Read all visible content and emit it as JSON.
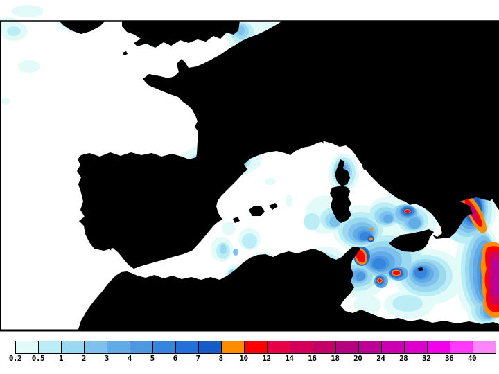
{
  "figure": {
    "kind": "precipitation-forecast-map",
    "region": "Western Europe and Mediterranean",
    "sea_color": "#FFFFFF",
    "land_color": "#ADADAD",
    "coastline_color": "#000000",
    "frame_color": "#000000",
    "background_color": "#FFFFFF"
  },
  "colorbar": {
    "orientation": "horizontal",
    "labels": [
      "0.2",
      "0.5",
      "1",
      "2",
      "3",
      "4",
      "5",
      "6",
      "7",
      "8",
      "10",
      "12",
      "14",
      "16",
      "18",
      "20",
      "24",
      "28",
      "32",
      "36",
      "40"
    ],
    "levels": [
      {
        "value": "0.2",
        "color": "#E2FBF8"
      },
      {
        "value": "0.5",
        "color": "#BAEDF5"
      },
      {
        "value": "1",
        "color": "#9BD9F1"
      },
      {
        "value": "2",
        "color": "#7FC1ED"
      },
      {
        "value": "3",
        "color": "#61ABE7"
      },
      {
        "value": "4",
        "color": "#4C99E2"
      },
      {
        "value": "5",
        "color": "#3585DE"
      },
      {
        "value": "6",
        "color": "#2270D8"
      },
      {
        "value": "7",
        "color": "#155CC9"
      },
      {
        "value": "8",
        "color": "#FF8C00"
      },
      {
        "value": "10",
        "color": "#FE0000"
      },
      {
        "value": "12",
        "color": "#E6004A"
      },
      {
        "value": "14",
        "color": "#D20058"
      },
      {
        "value": "16",
        "color": "#C20068"
      },
      {
        "value": "18",
        "color": "#B3037E"
      },
      {
        "value": "20",
        "color": "#BC0095"
      },
      {
        "value": "24",
        "color": "#CB00B0"
      },
      {
        "value": "28",
        "color": "#DC00CC"
      },
      {
        "value": "32",
        "color": "#EF00E8"
      },
      {
        "value": "36",
        "color": "#FC3AFB"
      },
      {
        "value": "40",
        "color": "#FD86FC"
      }
    ]
  },
  "chart_data": {
    "type": "heatmap",
    "title": "",
    "legend_entries": [
      "0.2",
      "0.5",
      "1",
      "2",
      "3",
      "4",
      "5",
      "6",
      "7",
      "8",
      "10",
      "12",
      "14",
      "16",
      "18",
      "20",
      "24",
      "28",
      "32",
      "36",
      "40"
    ],
    "notes": "Filled contour precipitation field; intense maxima (above 10) over the Pyrenees, central Apennines, Calabria, Cape Bon (Tunisia), sea SE of Sicily, and the Ionian Sea at the right edge"
  }
}
